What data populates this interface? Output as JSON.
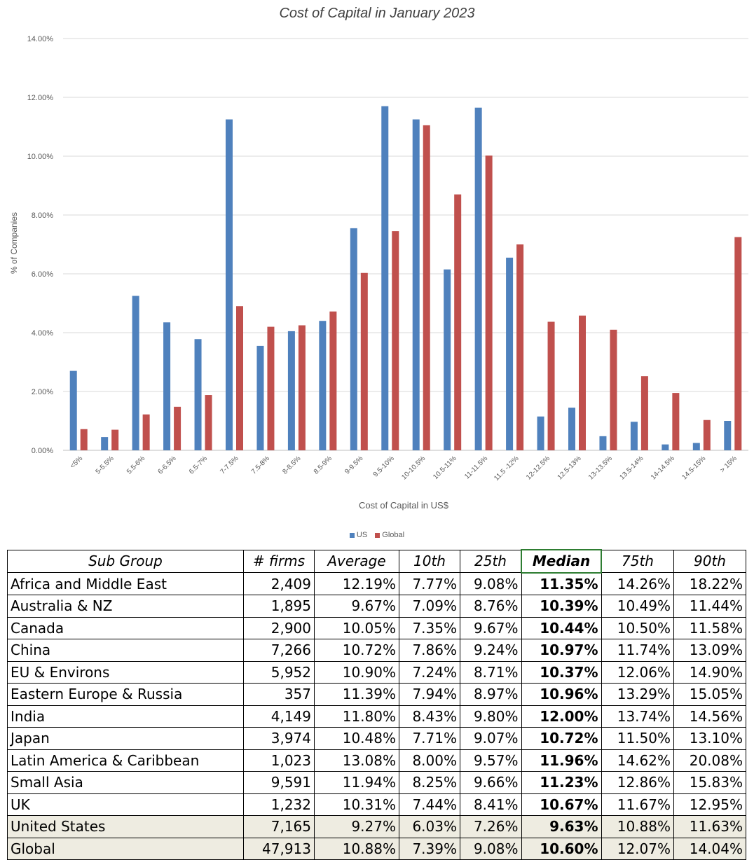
{
  "chart_data": {
    "type": "bar",
    "title": "Cost of Capital in January 2023",
    "xlabel": "Cost of Capital in US$",
    "ylabel": "% of Companies",
    "ylim": [
      0,
      14
    ],
    "yticks": [
      "0.00%",
      "2.00%",
      "4.00%",
      "6.00%",
      "8.00%",
      "10.00%",
      "12.00%",
      "14.00%"
    ],
    "grid": true,
    "legend_position": "bottom",
    "categories": [
      "<5%",
      "5-5.5%",
      "5.5-6%",
      "6-6.5%",
      "6.5-7%",
      "7-7.5%",
      "7.5-8%",
      "8-8.5%",
      "8.5-9%",
      "9-9.5%",
      "9.5-10%",
      "10-10.5%",
      "10.5-11%",
      "11-11.5%",
      "11.5 -12%",
      "12-12.5%",
      "12.5-13%",
      "13-13.5%",
      "13.5-14%",
      "14-14.5%",
      "14.5-15%",
      "> 15%"
    ],
    "series": [
      {
        "name": "US",
        "color": "#4f81bd",
        "values": [
          2.7,
          0.45,
          5.25,
          4.35,
          3.78,
          11.25,
          3.55,
          4.05,
          4.4,
          7.55,
          11.7,
          11.25,
          6.15,
          11.65,
          6.55,
          1.15,
          1.45,
          0.48,
          0.97,
          0.2,
          0.25,
          1.0
        ]
      },
      {
        "name": "Global",
        "color": "#c0504d",
        "values": [
          0.72,
          0.7,
          1.22,
          1.48,
          1.88,
          4.9,
          4.2,
          4.25,
          4.72,
          6.03,
          7.45,
          11.05,
          8.7,
          10.02,
          7.0,
          4.37,
          4.58,
          4.1,
          2.52,
          1.95,
          1.03,
          7.25
        ]
      }
    ]
  },
  "table": {
    "headers": [
      "Sub Group",
      "# firms",
      "Average",
      "10th",
      "25th",
      "Median",
      "75th",
      "90th"
    ],
    "rows": [
      [
        "Africa and Middle East",
        "2,409",
        "12.19%",
        "7.77%",
        "9.08%",
        "11.35%",
        "14.26%",
        "18.22%"
      ],
      [
        "Australia & NZ",
        "1,895",
        "9.67%",
        "7.09%",
        "8.76%",
        "10.39%",
        "10.49%",
        "11.44%"
      ],
      [
        "Canada",
        "2,900",
        "10.05%",
        "7.35%",
        "9.67%",
        "10.44%",
        "10.50%",
        "11.58%"
      ],
      [
        "China",
        "7,266",
        "10.72%",
        "7.86%",
        "9.24%",
        "10.97%",
        "11.74%",
        "13.09%"
      ],
      [
        "EU & Environs",
        "5,952",
        "10.90%",
        "7.24%",
        "8.71%",
        "10.37%",
        "12.06%",
        "14.90%"
      ],
      [
        "Eastern Europe & Russia",
        "357",
        "11.39%",
        "7.94%",
        "8.97%",
        "10.96%",
        "13.29%",
        "15.05%"
      ],
      [
        "India",
        "4,149",
        "11.80%",
        "8.43%",
        "9.80%",
        "12.00%",
        "13.74%",
        "14.56%"
      ],
      [
        "Japan",
        "3,974",
        "10.48%",
        "7.71%",
        "9.07%",
        "10.72%",
        "11.50%",
        "13.10%"
      ],
      [
        "Latin America & Caribbean",
        "1,023",
        "13.08%",
        "8.00%",
        "9.57%",
        "11.96%",
        "14.62%",
        "20.08%"
      ],
      [
        "Small Asia",
        "9,591",
        "11.94%",
        "8.25%",
        "9.66%",
        "11.23%",
        "12.86%",
        "15.83%"
      ],
      [
        "UK",
        "1,232",
        "10.31%",
        "7.44%",
        "8.41%",
        "10.67%",
        "11.67%",
        "12.95%"
      ],
      [
        "United States",
        "7,165",
        "9.27%",
        "6.03%",
        "7.26%",
        "9.63%",
        "10.88%",
        "11.63%"
      ],
      [
        "Global",
        "47,913",
        "10.88%",
        "7.39%",
        "9.08%",
        "10.60%",
        "12.07%",
        "14.04%"
      ]
    ],
    "shade_color": "#eeece1",
    "median_border_color": "#2e7d32"
  }
}
